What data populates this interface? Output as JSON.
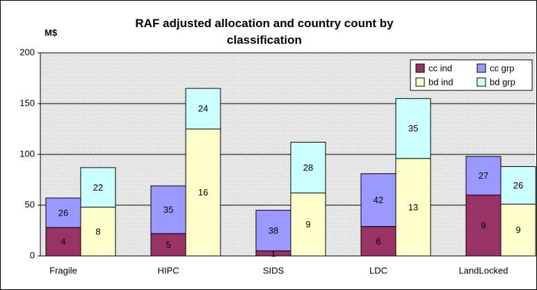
{
  "chart_data": {
    "type": "bar",
    "title": "RAF adjusted allocation and country count by classification",
    "ylabel": "M$",
    "categories": [
      "Fragile",
      "HIPC",
      "SIDS",
      "LDC",
      "LandLocked"
    ],
    "ylim": [
      0,
      200
    ],
    "yticks": [
      0,
      50,
      100,
      150,
      200
    ],
    "grid": true,
    "legend": "upper right",
    "series": [
      {
        "name": "cc ind",
        "color": "#993366",
        "values": [
          28,
          22,
          5,
          29,
          60
        ],
        "counts": [
          4,
          5,
          1,
          6,
          9
        ]
      },
      {
        "name": "cc grp",
        "color": "#9999ff",
        "values": [
          29,
          47,
          40,
          52,
          38
        ],
        "counts": [
          26,
          35,
          38,
          42,
          27
        ]
      },
      {
        "name": "bd ind",
        "color": "#ffffcc",
        "values": [
          48,
          125,
          62,
          96,
          51
        ],
        "counts": [
          8,
          16,
          9,
          13,
          9
        ]
      },
      {
        "name": "bd grp",
        "color": "#ccffff",
        "values": [
          39,
          40,
          50,
          59,
          37
        ],
        "counts": [
          22,
          24,
          28,
          35,
          26
        ]
      }
    ]
  }
}
